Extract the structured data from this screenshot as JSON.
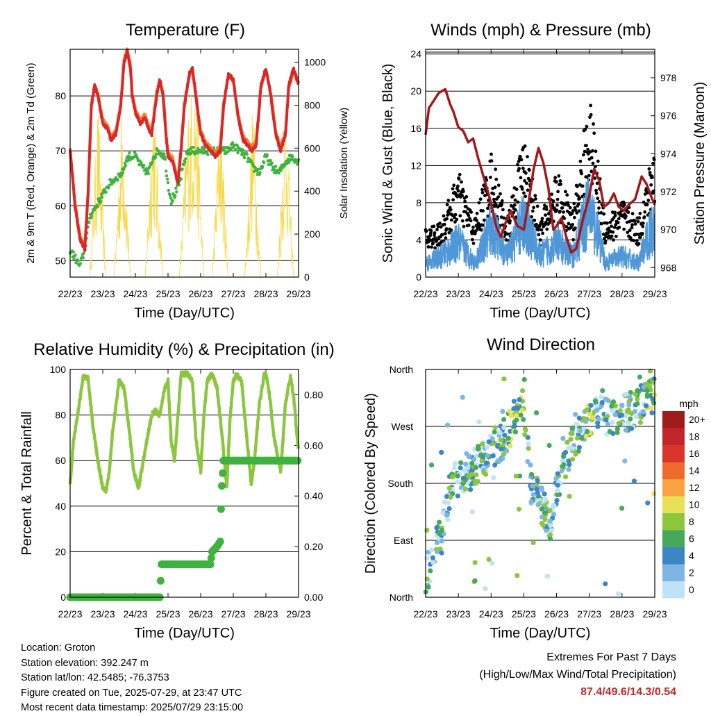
{
  "chart_data": [
    {
      "type": "line",
      "title": "Temperature (F)",
      "xlabel": "Time (Day/UTC)",
      "ylabel": "2m & 9m T (Red, Orange) & 2m Td (Green)",
      "ylabel_right": "Solar Insolation (Yellow)",
      "x_ticks": [
        "22/23",
        "23/23",
        "24/23",
        "25/23",
        "26/23",
        "27/23",
        "28/23",
        "29/23"
      ],
      "y_ticks": [
        "50",
        "60",
        "70",
        "80"
      ],
      "y_ticks_right": [
        "0",
        "200",
        "400",
        "600",
        "800",
        "1000"
      ],
      "ylim": [
        47,
        88.5
      ],
      "ylim_right": [
        0,
        1060
      ],
      "grid": true,
      "colors": {
        "t2m": "#d9272a",
        "t9m": "#f58232",
        "td": "#3fb23f",
        "solar": "#f7d948"
      },
      "series": [
        {
          "x": [
            0,
            0.15,
            0.3,
            0.45,
            0.55,
            0.65,
            0.75,
            0.85,
            1.0,
            1.15,
            1.25,
            1.4,
            1.55,
            1.65,
            1.75,
            1.85,
            1.9,
            2.0,
            2.15,
            2.3,
            2.4,
            2.5,
            2.65,
            2.75,
            2.85,
            2.95,
            3.0,
            3.15,
            3.3,
            3.4,
            3.5,
            3.65,
            3.75,
            3.85,
            4.0,
            4.15,
            4.3,
            4.45,
            4.6,
            4.7,
            4.85,
            5.0,
            5.15,
            5.3,
            5.45,
            5.55,
            5.7,
            5.85,
            6.0,
            6.15,
            6.3,
            6.45,
            6.6,
            6.7,
            6.85,
            7.0
          ],
          "values": [
            70,
            60,
            54,
            52,
            62,
            78,
            82,
            80,
            75,
            74,
            72,
            73,
            78,
            86,
            88,
            85,
            80,
            77,
            75,
            76,
            74,
            73,
            80,
            83,
            80,
            72,
            69,
            68,
            64,
            70,
            78,
            84,
            85,
            80,
            73,
            71,
            70,
            69,
            70,
            78,
            84,
            83,
            76,
            72,
            71,
            70,
            71,
            82,
            85,
            80,
            73,
            70,
            73,
            82,
            85,
            82
          ]
        },
        {
          "x": [
            0,
            0.15,
            0.3,
            0.45,
            0.55,
            0.65,
            0.75,
            0.85,
            1.0,
            1.15,
            1.25,
            1.4,
            1.55,
            1.65,
            1.75,
            1.85,
            1.9,
            2.0,
            2.15,
            2.3,
            2.4,
            2.5,
            2.65,
            2.75,
            2.85,
            2.95,
            3.0,
            3.15,
            3.3,
            3.4,
            3.5,
            3.65,
            3.75,
            3.85,
            4.0,
            4.15,
            4.3,
            4.45,
            4.6,
            4.7,
            4.85,
            5.0,
            5.15,
            5.3,
            5.45,
            5.55,
            5.7,
            5.85,
            6.0,
            6.15,
            6.3,
            6.45,
            6.6,
            6.7,
            6.85,
            7.0
          ],
          "values": [
            70,
            60,
            54,
            52,
            62,
            78,
            81,
            80,
            75,
            74,
            72,
            73,
            78,
            86,
            88,
            85,
            80,
            77,
            75,
            76,
            74,
            73,
            80,
            82,
            80,
            72,
            69,
            68,
            64,
            70,
            78,
            83,
            84,
            80,
            73,
            71,
            70,
            69,
            70,
            78,
            83,
            82,
            76,
            72,
            71,
            70,
            71,
            81,
            84,
            80,
            73,
            70,
            73,
            81,
            84,
            82
          ]
        },
        {
          "x": [
            0,
            0.1,
            0.2,
            0.3,
            0.45,
            0.6,
            0.8,
            1.0,
            1.2,
            1.4,
            1.6,
            1.7,
            1.8,
            2.0,
            2.2,
            2.4,
            2.55,
            2.7,
            2.9,
            3.0,
            3.1,
            3.2,
            3.35,
            3.5,
            3.6,
            3.8,
            4.0,
            4.2,
            4.4,
            4.6,
            4.8,
            5.0,
            5.2,
            5.4,
            5.6,
            5.8,
            6.0,
            6.2,
            6.4,
            6.6,
            6.8,
            7.0
          ],
          "values": [
            52,
            51,
            50,
            49,
            52,
            58,
            60,
            62,
            64,
            65,
            66,
            68,
            69,
            69,
            67,
            66,
            69,
            70,
            69,
            64,
            61,
            62,
            64,
            68,
            70,
            70,
            70,
            70,
            70,
            70,
            70,
            71,
            70,
            69,
            67,
            66,
            69,
            67,
            66,
            68,
            69,
            68
          ]
        },
        {
          "x": [
            0,
            0.6,
            0.85,
            1.1,
            1.35,
            1.6,
            1.85,
            2.1,
            2.3,
            2.55,
            2.85,
            3.1,
            3.35,
            3.6,
            3.85,
            4.1,
            4.35,
            4.6,
            4.85,
            5.1,
            5.35,
            5.6,
            5.85,
            6.1,
            6.35,
            6.6,
            6.85,
            7.0
          ],
          "values_right": [
            0,
            0,
            850,
            0,
            0,
            870,
            0,
            0,
            0,
            900,
            0,
            0,
            0,
            800,
            1020,
            0,
            0,
            870,
            0,
            0,
            0,
            850,
            0,
            0,
            0,
            900,
            0,
            0
          ]
        }
      ]
    },
    {
      "type": "line",
      "title": "Winds (mph) & Pressure (mb)",
      "xlabel": "Time (Day/UTC)",
      "ylabel": "Sonic Wind & Gust (Blue, Black)",
      "ylabel_right": "Station Pressure (Maroon)",
      "x_ticks": [
        "22/23",
        "23/23",
        "24/23",
        "25/23",
        "26/23",
        "27/23",
        "28/23",
        "29/23"
      ],
      "y_ticks": [
        "0",
        "4",
        "8",
        "12",
        "16",
        "20",
        "24"
      ],
      "y_ticks_right": [
        "968",
        "970",
        "972",
        "974",
        "976",
        "978"
      ],
      "ylim": [
        0,
        24.5
      ],
      "ylim_right": [
        967.5,
        979.5
      ],
      "grid": true,
      "colors": {
        "wind": "#4f97d6",
        "gust": "#000000",
        "pressure": "#a3181c"
      },
      "series": [
        {
          "x": [
            0,
            0.5,
            1,
            1.5,
            2,
            2.5,
            3,
            3.5,
            4,
            4.5,
            5,
            5.5,
            6,
            6.5,
            7
          ],
          "values": [
            2,
            3,
            5,
            2,
            7,
            3,
            8,
            3,
            5,
            3,
            10,
            2,
            3,
            2,
            8
          ]
        },
        {
          "x": [
            0,
            0.5,
            1,
            1.5,
            2,
            2.5,
            3,
            3.5,
            4,
            4.5,
            5,
            5.5,
            6,
            6.5,
            7
          ],
          "values": [
            5,
            6,
            11,
            6,
            13,
            6,
            15,
            6,
            11,
            7,
            19,
            6,
            8,
            6,
            14
          ]
        },
        {
          "x": [
            0,
            0.1,
            0.25,
            0.4,
            0.6,
            0.75,
            0.85,
            1.0,
            1.15,
            1.3,
            1.45,
            1.6,
            1.8,
            2.0,
            2.15,
            2.3,
            2.45,
            2.6,
            2.8,
            3.0,
            3.15,
            3.3,
            3.45,
            3.6,
            3.75,
            3.9,
            4.0,
            4.15,
            4.3,
            4.45,
            4.6,
            4.8,
            5.0,
            5.15,
            5.3,
            5.45,
            5.6,
            5.75,
            5.9,
            6.05,
            6.2,
            6.4,
            6.6,
            6.75,
            6.9,
            7.0
          ],
          "values_right": [
            975,
            976.4,
            976.8,
            977.2,
            977.4,
            976.6,
            976.2,
            975.4,
            975.2,
            974.6,
            974.8,
            973.8,
            972.6,
            971.4,
            970.2,
            969.6,
            970.4,
            971.0,
            970.2,
            970.0,
            971.5,
            973.2,
            974.3,
            973.5,
            972.2,
            970.0,
            970.2,
            970.6,
            969.6,
            968.8,
            969.0,
            970.5,
            971.8,
            973.2,
            972.6,
            971.2,
            971.4,
            971.9,
            971.2,
            971.0,
            971.3,
            971.6,
            972.8,
            972.4,
            971.7,
            971.3
          ]
        }
      ]
    },
    {
      "type": "line",
      "title": "Relative Humidity (%) & Precipitation (in)",
      "xlabel": "Time (Day/UTC)",
      "ylabel": "Percent & Total Rainfall",
      "x_ticks": [
        "22/23",
        "23/23",
        "24/23",
        "25/23",
        "26/23",
        "27/23",
        "28/23",
        "29/23"
      ],
      "y_ticks": [
        "0",
        "20",
        "40",
        "60",
        "80",
        "100"
      ],
      "y_ticks_right": [
        "0.00",
        "0.20",
        "0.40",
        "0.60",
        "0.80"
      ],
      "ylim": [
        0,
        100
      ],
      "ylim_right": [
        0,
        0.9
      ],
      "grid": true,
      "colors": {
        "rh": "#8cc63f",
        "precip": "#3fb23f"
      },
      "series": [
        {
          "x": [
            0,
            0.1,
            0.25,
            0.4,
            0.55,
            0.7,
            0.85,
            1.0,
            1.1,
            1.2,
            1.3,
            1.5,
            1.65,
            1.8,
            1.95,
            2.1,
            2.3,
            2.5,
            2.6,
            2.75,
            2.9,
            3.0,
            3.1,
            3.2,
            3.4,
            3.6,
            3.75,
            3.85,
            4.0,
            4.1,
            4.2,
            4.35,
            4.5,
            4.65,
            4.8,
            4.9,
            5.0,
            5.1,
            5.25,
            5.4,
            5.55,
            5.65,
            5.8,
            5.95,
            6.0,
            6.1,
            6.25,
            6.45,
            6.6,
            6.75,
            6.85,
            7.0
          ],
          "values": [
            50,
            68,
            82,
            97,
            96,
            75,
            60,
            48,
            47,
            55,
            72,
            95,
            92,
            75,
            55,
            48,
            65,
            80,
            82,
            80,
            92,
            95,
            68,
            60,
            98,
            98,
            95,
            70,
            55,
            80,
            95,
            98,
            92,
            72,
            48,
            78,
            95,
            98,
            95,
            72,
            50,
            60,
            85,
            98,
            98,
            90,
            70,
            55,
            85,
            97,
            88,
            63
          ]
        },
        {
          "x": [
            0,
            0.5,
            1.0,
            1.5,
            2.0,
            2.5,
            2.75,
            2.8,
            3.0,
            3.5,
            4.0,
            4.3,
            4.35,
            4.5,
            4.6,
            4.62,
            4.65,
            4.7,
            5.0,
            5.5,
            6.0,
            6.5,
            7.0
          ],
          "values_right": [
            0,
            0,
            0,
            0,
            0,
            0,
            0,
            0.13,
            0.13,
            0.13,
            0.13,
            0.13,
            0.18,
            0.2,
            0.22,
            0.33,
            0.44,
            0.54,
            0.54,
            0.54,
            0.54,
            0.54,
            0.54
          ]
        }
      ]
    },
    {
      "type": "scatter",
      "title": "Wind Direction",
      "xlabel": "Time (Day/UTC)",
      "ylabel": "Direction (Colored By Speed)",
      "x_ticks": [
        "22/23",
        "23/23",
        "24/23",
        "25/23",
        "26/23",
        "27/23",
        "28/23",
        "29/23"
      ],
      "y_ticks": [
        "North",
        "East",
        "South",
        "West",
        "North"
      ],
      "ylim": [
        0,
        360
      ],
      "grid": true,
      "legend_title": "mph",
      "legend_labels": [
        "20+",
        "18",
        "16",
        "14",
        "12",
        "10",
        "8",
        "6",
        "4",
        "2",
        "0"
      ],
      "legend_colors": [
        "#a01a1c",
        "#c0252a",
        "#d9352b",
        "#ef6a2c",
        "#f9a242",
        "#e8e055",
        "#8cc63f",
        "#46a85a",
        "#3d86c6",
        "#7db6e3",
        "#bfe2f7"
      ],
      "series": [
        {
          "name": "22/23",
          "x": [
            0.1,
            0.2,
            0.3,
            0.35,
            0.45
          ],
          "values": [
            40,
            90,
            60,
            300,
            330
          ],
          "speed": [
            2,
            1,
            3,
            1,
            2
          ]
        },
        {
          "name": "23/23",
          "x": [
            1.0,
            1.2,
            1.4,
            1.6,
            1.8
          ],
          "values": [
            190,
            175,
            200,
            220,
            210
          ],
          "speed": [
            4,
            6,
            3,
            8,
            4
          ]
        },
        {
          "name": "24/23",
          "x": [
            2.0,
            2.2,
            2.4,
            2.6,
            2.8
          ],
          "values": [
            240,
            220,
            225,
            250,
            280
          ],
          "speed": [
            6,
            8,
            4,
            10,
            10
          ]
        },
        {
          "name": "25/23",
          "x": [
            3.0,
            3.2,
            3.4,
            3.6,
            3.8
          ],
          "values": [
            170,
            130,
            100,
            160,
            180
          ],
          "speed": [
            4,
            6,
            8,
            4,
            3
          ]
        },
        {
          "name": "26/23",
          "x": [
            4.0,
            4.2,
            4.4,
            4.6,
            4.8
          ],
          "values": [
            210,
            250,
            280,
            310,
            300
          ],
          "speed": [
            4,
            3,
            10,
            12,
            4
          ]
        },
        {
          "name": "27/23",
          "x": [
            5.0,
            5.3,
            5.6,
            5.9,
            6.2,
            6.5,
            6.8
          ],
          "values": [
            320,
            290,
            270,
            300,
            310,
            280,
            320
          ],
          "speed": [
            4,
            3,
            2,
            4,
            6,
            4,
            10
          ]
        }
      ]
    }
  ],
  "info": {
    "location": "Location: Groton",
    "elevation": "Station elevation: 392.247 m",
    "latlon": "Station lat/lon: 42.5485; -76.3753",
    "created": "Figure created on Tue, 2025-07-29, at 23:47 UTC",
    "recent": "Most recent data timestamp: 2025/07/29 23:15:00"
  },
  "extremes": {
    "title": "Extremes For Past 7 Days",
    "subtitle": "(High/Low/Max Wind/Total Precipitation)",
    "values": "87.4/49.6/14.3/0.54"
  }
}
